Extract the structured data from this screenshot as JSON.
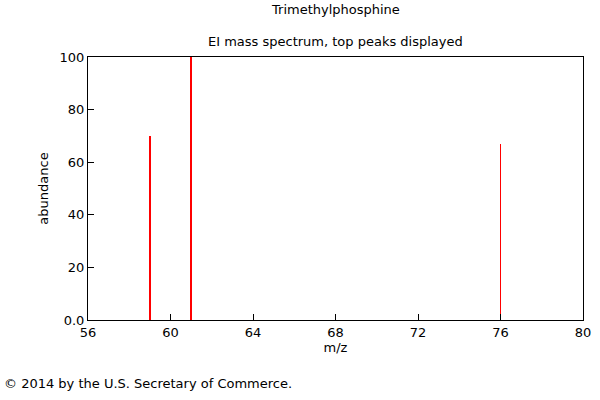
{
  "chart_data": {
    "type": "bar",
    "title": "Trimethylphosphine",
    "subtitle": "EI mass spectrum, top peaks displayed",
    "x_label": "m/z",
    "y_label": "abundance",
    "x": [
      59,
      61,
      76
    ],
    "values": [
      70,
      100,
      67
    ],
    "color": "#ff0000",
    "xlim": [
      56,
      80
    ],
    "xticks": [
      56,
      60,
      64,
      68,
      72,
      76,
      80
    ],
    "ylim": [
      0,
      100
    ],
    "yticks": [
      {
        "value": 0,
        "label": "0.0"
      },
      20,
      40,
      60,
      80,
      100
    ],
    "grid": false,
    "annotations": [
      "© 2014 by the U.S. Secretary of Commerce."
    ]
  }
}
